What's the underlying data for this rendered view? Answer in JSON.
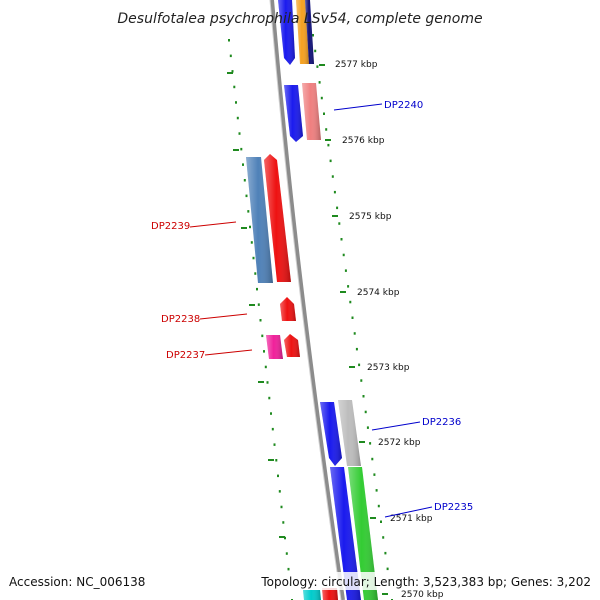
{
  "title": "Desulfotalea psychrophila LSv54, complete genome",
  "accession": "Accession: NC_006138",
  "topology": "Topology: circular; Length: 3,523,383 bp; Genes: 3,202",
  "colors": {
    "backbone": "#8c8c8c",
    "tick": "#1f8a1f",
    "forward_label": "#0000cc",
    "reverse_label": "#cc0000"
  },
  "ticks": [
    {
      "label": "2577 kbp"
    },
    {
      "label": "2576 kbp"
    },
    {
      "label": "2575 kbp"
    },
    {
      "label": "2574 kbp"
    },
    {
      "label": "2573 kbp"
    },
    {
      "label": "2572 kbp"
    },
    {
      "label": "2571 kbp"
    },
    {
      "label": "2570 kbp"
    }
  ],
  "gene_labels": [
    {
      "name": "DP2240",
      "strand": "forward"
    },
    {
      "name": "DP2239",
      "strand": "reverse"
    },
    {
      "name": "DP2238",
      "strand": "reverse"
    },
    {
      "name": "DP2237",
      "strand": "reverse"
    },
    {
      "name": "DP2236",
      "strand": "forward"
    },
    {
      "name": "DP2235",
      "strand": "forward"
    }
  ],
  "features": [
    {
      "name": "feature-orange-top",
      "color": "#f5a020"
    },
    {
      "name": "feature-navy-top",
      "color": "#10107a"
    },
    {
      "name": "feature-blue-top",
      "color": "#1a1aee"
    },
    {
      "name": "feature-blue-dp2240",
      "color": "#1a1aee"
    },
    {
      "name": "feature-salmon-dp2240",
      "color": "#ef7f7f"
    },
    {
      "name": "feature-steelblue-dp2239",
      "color": "#4f81b8"
    },
    {
      "name": "feature-red-dp2239",
      "color": "#ee1111"
    },
    {
      "name": "feature-red-dp2238",
      "color": "#ee1111"
    },
    {
      "name": "feature-pink-dp2237",
      "color": "#f0209a"
    },
    {
      "name": "feature-red-dp2237",
      "color": "#ee1111"
    },
    {
      "name": "feature-blue-dp2236",
      "color": "#1a1aee"
    },
    {
      "name": "feature-gray-dp2236",
      "color": "#bdbdbd"
    },
    {
      "name": "feature-blue-dp2235",
      "color": "#1a1aee"
    },
    {
      "name": "feature-green-dp2235",
      "color": "#33cc33"
    },
    {
      "name": "feature-cyan-bottom",
      "color": "#00cccc"
    },
    {
      "name": "feature-red-bottom",
      "color": "#ee1111"
    }
  ]
}
